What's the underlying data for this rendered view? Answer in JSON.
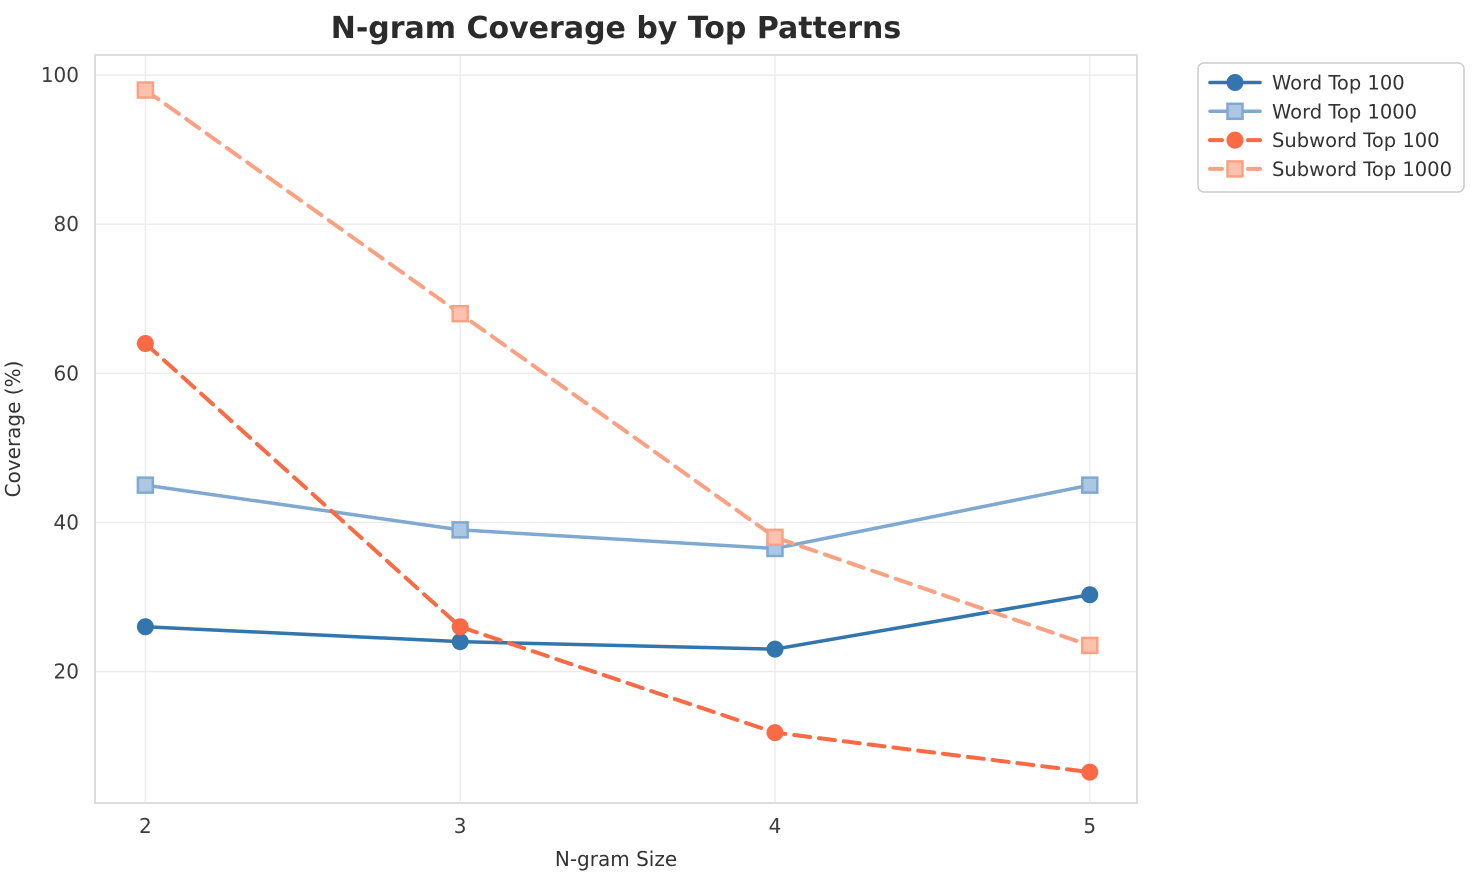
{
  "chart_data": {
    "type": "line",
    "title": "N-gram Coverage by Top Patterns",
    "xlabel": "N-gram Size",
    "ylabel": "Coverage (%)",
    "x": [
      2,
      3,
      4,
      5
    ],
    "xticks": [
      "2",
      "3",
      "4",
      "5"
    ],
    "yticks": [
      20,
      40,
      60,
      80,
      100
    ],
    "ytick_labels": [
      "20",
      "40",
      "60",
      "80",
      "100"
    ],
    "xlim": [
      1.84,
      5.15
    ],
    "ylim": [
      2.36,
      102.7
    ],
    "grid": true,
    "legend_position": "outside-top-right",
    "series": [
      {
        "name": "Word Top 100",
        "values": [
          26,
          24,
          23,
          30.3
        ],
        "color": "#3375AD",
        "line_style": "solid",
        "marker": "circle"
      },
      {
        "name": "Word Top 1000",
        "values": [
          45,
          39,
          36.5,
          45
        ],
        "color": "#7FA9D1",
        "line_style": "solid",
        "marker": "square"
      },
      {
        "name": "Subword Top 100",
        "values": [
          64,
          26,
          11.8,
          6.5
        ],
        "color": "#FA6A45",
        "line_style": "dashed",
        "marker": "circle"
      },
      {
        "name": "Subword Top 1000",
        "values": [
          98,
          68,
          38,
          23.5
        ],
        "color": "#FBA183",
        "line_style": "dashed",
        "marker": "square"
      }
    ],
    "style": {
      "grid_color": "#ECECEC",
      "spine_color": "#DCDCDC",
      "tick_label_color": "#3D3D3D",
      "title_color": "#2B2B2B",
      "axis_label_color": "#333333",
      "legend_border_color": "#CCCCCC",
      "legend_text_color": "#333333",
      "background": "#FFFFFF"
    }
  }
}
